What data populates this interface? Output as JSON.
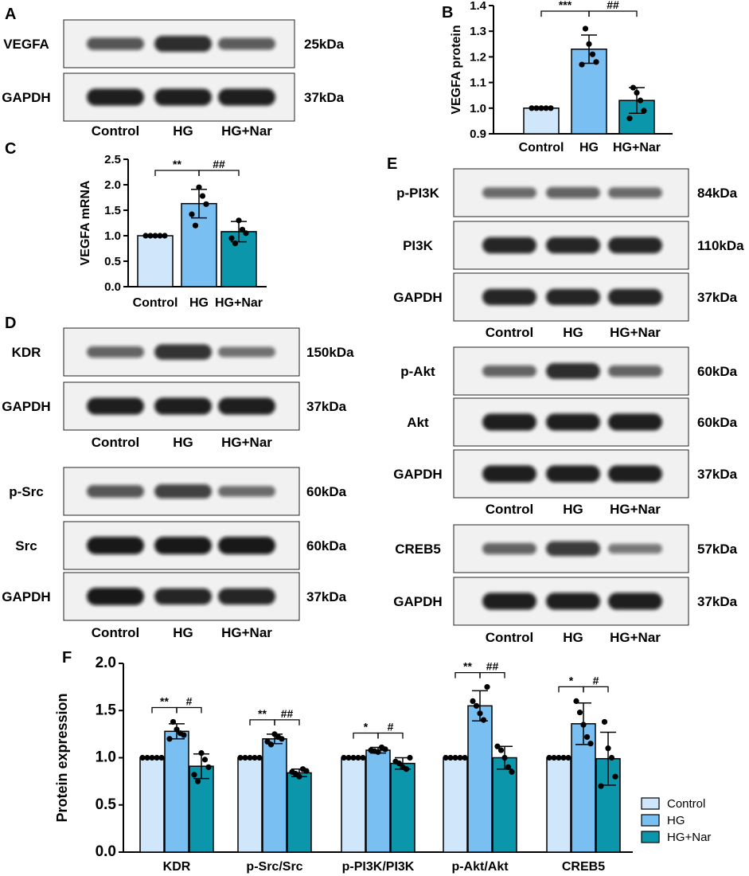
{
  "colors": {
    "control": "#cfe6fb",
    "hg": "#79bff2",
    "hgnar": "#0b96ac",
    "band": "#111111",
    "blot_bg": "#f1f1f1"
  },
  "panels": {
    "A": {
      "label": "A",
      "rows": [
        {
          "name": "VEGFA",
          "size": "25kDa",
          "intensity": [
            0.55,
            0.85,
            0.5
          ]
        },
        {
          "name": "GAPDH",
          "size": "37kDa",
          "intensity": [
            0.95,
            0.95,
            0.95
          ]
        }
      ],
      "lanes": [
        "Control",
        "HG",
        "HG+Nar"
      ]
    },
    "D1": {
      "label": "D",
      "rows": [
        {
          "name": "KDR",
          "size": "150kDa",
          "intensity": [
            0.45,
            0.8,
            0.35
          ]
        },
        {
          "name": "GAPDH",
          "size": "37kDa",
          "intensity": [
            0.95,
            0.95,
            0.95
          ]
        }
      ],
      "lanes": [
        "Control",
        "HG",
        "HG+Nar"
      ]
    },
    "D2": {
      "rows": [
        {
          "name": "p-Src",
          "size": "60kDa",
          "intensity": [
            0.55,
            0.7,
            0.4
          ]
        },
        {
          "name": "Src",
          "size": "60kDa",
          "intensity": [
            1.0,
            1.0,
            1.0
          ]
        },
        {
          "name": "GAPDH",
          "size": "37kDa",
          "intensity": [
            1.0,
            0.9,
            0.9
          ]
        }
      ],
      "lanes": [
        "Control",
        "HG",
        "HG+Nar"
      ]
    },
    "E1": {
      "label": "E",
      "rows": [
        {
          "name": "p-PI3K",
          "size": "84kDa",
          "intensity": [
            0.4,
            0.45,
            0.4
          ]
        },
        {
          "name": "PI3K",
          "size": "110kDa",
          "intensity": [
            0.9,
            0.9,
            0.9
          ]
        },
        {
          "name": "GAPDH",
          "size": "37kDa",
          "intensity": [
            0.9,
            0.9,
            0.9
          ]
        }
      ],
      "lanes": [
        "Control",
        "HG",
        "HG+Nar"
      ]
    },
    "E2": {
      "rows": [
        {
          "name": "p-Akt",
          "size": "60kDa",
          "intensity": [
            0.45,
            0.85,
            0.45
          ]
        },
        {
          "name": "Akt",
          "size": "60kDa",
          "intensity": [
            0.95,
            0.95,
            0.95
          ]
        },
        {
          "name": "GAPDH",
          "size": "37kDa",
          "intensity": [
            0.95,
            0.95,
            0.95
          ]
        }
      ],
      "lanes": [
        "Control",
        "HG",
        "HG+Nar"
      ]
    },
    "E3": {
      "rows": [
        {
          "name": "CREB5",
          "size": "57kDa",
          "intensity": [
            0.45,
            0.75,
            0.3
          ]
        },
        {
          "name": "GAPDH",
          "size": "37kDa",
          "intensity": [
            0.95,
            0.95,
            0.95
          ]
        }
      ],
      "lanes": [
        "Control",
        "HG",
        "HG+Nar"
      ]
    }
  },
  "chart_data": [
    {
      "panel": "B",
      "type": "bar",
      "categories": [
        "Control",
        "HG",
        "HG+Nar"
      ],
      "values": [
        1.0,
        1.23,
        1.03
      ],
      "errors": [
        0,
        0.055,
        0.05
      ],
      "points": [
        [
          1.0,
          1.0,
          1.0,
          1.0,
          1.0
        ],
        [
          1.31,
          1.25,
          1.21,
          1.18,
          1.17
        ],
        [
          1.08,
          1.06,
          1.03,
          0.99,
          0.96
        ]
      ],
      "ylabel": "VEGFA protein",
      "ylim": [
        0.9,
        1.4
      ],
      "yticks": [
        "0.9",
        "1.0",
        "1.1",
        "1.2",
        "1.3",
        "1.4"
      ],
      "significance": [
        "***",
        "##"
      ]
    },
    {
      "panel": "C",
      "type": "bar",
      "categories": [
        "Control",
        "HG",
        "HG+Nar"
      ],
      "values": [
        1.0,
        1.63,
        1.08
      ],
      "errors": [
        0,
        0.28,
        0.2
      ],
      "points": [
        [
          1.0,
          1.0,
          1.0,
          1.0,
          1.0
        ],
        [
          1.95,
          1.78,
          1.62,
          1.42,
          1.2
        ],
        [
          1.3,
          1.12,
          1.05,
          0.95,
          0.85
        ]
      ],
      "ylabel": "VEGFA mRNA",
      "ylim": [
        0.0,
        2.5
      ],
      "yticks": [
        "0.0",
        "0.5",
        "1.0",
        "1.5",
        "2.0",
        "2.5"
      ],
      "significance": [
        "**",
        "##"
      ]
    },
    {
      "panel": "F",
      "type": "bar",
      "categories": [
        "KDR",
        "p-Src/Src",
        "p-PI3K/PI3K",
        "p-Akt/Akt",
        "CREB5"
      ],
      "series": [
        {
          "name": "Control",
          "values": [
            1.0,
            1.0,
            1.0,
            1.0,
            1.0
          ],
          "errors": [
            0,
            0,
            0,
            0,
            0
          ],
          "points": [
            [
              1,
              1,
              1,
              1,
              1
            ],
            [
              1,
              1,
              1,
              1,
              1
            ],
            [
              1,
              1,
              1,
              1,
              1
            ],
            [
              1,
              1,
              1,
              1,
              1
            ],
            [
              1,
              1,
              1,
              1,
              1
            ]
          ]
        },
        {
          "name": "HG",
          "values": [
            1.28,
            1.2,
            1.08,
            1.55,
            1.36
          ],
          "errors": [
            0.08,
            0.05,
            0.03,
            0.16,
            0.22
          ],
          "points": [
            [
              1.38,
              1.3,
              1.26,
              1.24,
              1.2
            ],
            [
              1.25,
              1.22,
              1.2,
              1.17,
              1.14
            ],
            [
              1.11,
              1.09,
              1.08,
              1.07,
              1.06
            ],
            [
              1.75,
              1.6,
              1.55,
              1.47,
              1.4
            ],
            [
              1.6,
              1.48,
              1.35,
              1.22,
              1.15
            ]
          ]
        },
        {
          "name": "HG+Nar",
          "values": [
            0.91,
            0.84,
            0.94,
            1.0,
            0.99
          ],
          "errors": [
            0.13,
            0.04,
            0.06,
            0.12,
            0.28
          ],
          "points": [
            [
              1.05,
              0.98,
              0.9,
              0.82,
              0.75
            ],
            [
              0.88,
              0.86,
              0.85,
              0.83,
              0.8
            ],
            [
              1.0,
              0.96,
              0.94,
              0.9,
              0.88
            ],
            [
              1.12,
              1.08,
              1.0,
              0.9,
              0.85
            ],
            [
              1.38,
              1.1,
              1.0,
              0.8,
              0.7
            ]
          ]
        }
      ],
      "ylabel": "Protein expression",
      "ylim": [
        0.0,
        2.0
      ],
      "yticks": [
        "0.0",
        "0.5",
        "1.0",
        "1.5",
        "2.0"
      ],
      "significance": [
        [
          "**",
          "#"
        ],
        [
          "**",
          "##"
        ],
        [
          "*",
          "#"
        ],
        [
          "**",
          "##"
        ],
        [
          "*",
          "#"
        ]
      ],
      "legend": {
        "position": "right",
        "entries": [
          "Control",
          "HG",
          "HG+Nar"
        ]
      }
    }
  ],
  "panel_labels": {
    "B": "B",
    "C": "C",
    "F": "F"
  }
}
